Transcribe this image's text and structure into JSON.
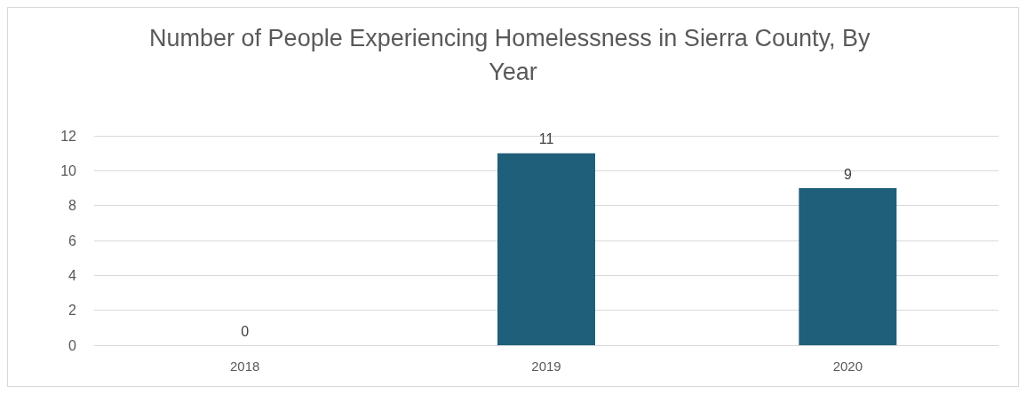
{
  "chart_data": {
    "type": "bar",
    "title": "Number of People Experiencing Homelessness in Sierra County, By Year",
    "categories": [
      "2018",
      "2019",
      "2020"
    ],
    "values": [
      0,
      11,
      9
    ],
    "color": "#1f5f7a",
    "ylim": [
      0,
      12
    ],
    "yticks": [
      0,
      2,
      4,
      6,
      8,
      10,
      12
    ],
    "grid": "y",
    "data_labels": true
  }
}
